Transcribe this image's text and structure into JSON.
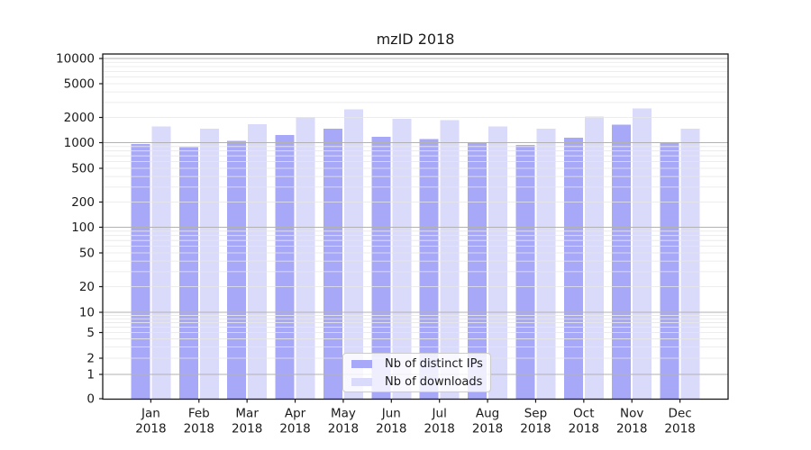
{
  "figure": {
    "title": "mzID 2018"
  },
  "legend": {
    "items": [
      {
        "label": "Nb of distinct IPs",
        "color": "#a8a8f8"
      },
      {
        "label": "Nb of downloads",
        "color": "#dadafa"
      }
    ]
  },
  "chart_data": {
    "type": "bar",
    "title": "mzID 2018",
    "yscale": "symlog",
    "grid": true,
    "legend_position": "lower center",
    "ylim": [
      0,
      10000
    ],
    "y_ticks": [
      0,
      1,
      2,
      5,
      10,
      20,
      50,
      100,
      200,
      500,
      1000,
      2000,
      5000,
      10000
    ],
    "y_tick_labels": [
      "0",
      "1",
      "2",
      "5",
      "10",
      "20",
      "50",
      "100",
      "200",
      "500",
      "1000",
      "2000",
      "5000",
      "10000"
    ],
    "categories": [
      {
        "month": "Jan",
        "year": "2018"
      },
      {
        "month": "Feb",
        "year": "2018"
      },
      {
        "month": "Mar",
        "year": "2018"
      },
      {
        "month": "Apr",
        "year": "2018"
      },
      {
        "month": "May",
        "year": "2018"
      },
      {
        "month": "Jun",
        "year": "2018"
      },
      {
        "month": "Jul",
        "year": "2018"
      },
      {
        "month": "Aug",
        "year": "2018"
      },
      {
        "month": "Sep",
        "year": "2018"
      },
      {
        "month": "Oct",
        "year": "2018"
      },
      {
        "month": "Nov",
        "year": "2018"
      },
      {
        "month": "Dec",
        "year": "2018"
      }
    ],
    "series": [
      {
        "name": "Nb of distinct IPs",
        "color": "#a8a8f8",
        "values": [
          970,
          890,
          1050,
          1230,
          1460,
          1180,
          1110,
          1000,
          940,
          1150,
          1650,
          1000
        ]
      },
      {
        "name": "Nb of downloads",
        "color": "#dadafa",
        "values": [
          1570,
          1460,
          1670,
          2020,
          2480,
          1920,
          1860,
          1560,
          1470,
          2050,
          2560,
          1460
        ]
      }
    ]
  }
}
